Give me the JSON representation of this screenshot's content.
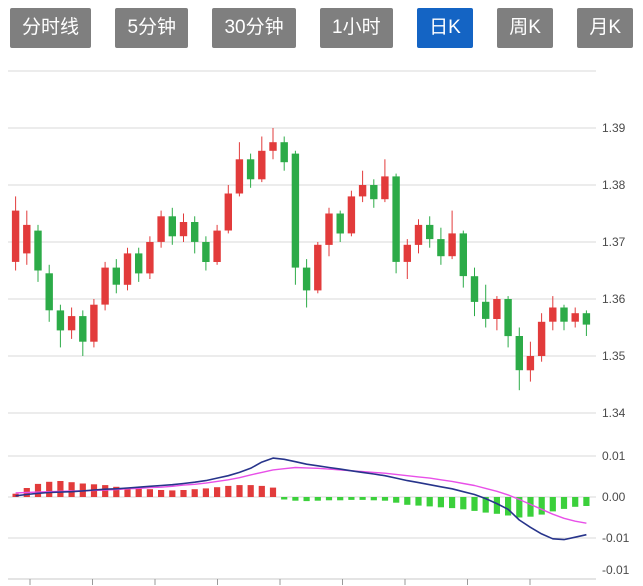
{
  "tabs": [
    {
      "label": "分时线",
      "active": false
    },
    {
      "label": "5分钟",
      "active": false
    },
    {
      "label": "30分钟",
      "active": false
    },
    {
      "label": "1小时",
      "active": false
    },
    {
      "label": "日K",
      "active": true
    },
    {
      "label": "周K",
      "active": false
    },
    {
      "label": "月K",
      "active": false
    }
  ],
  "colors": {
    "tab_bg": "#7f7f7f",
    "tab_active_bg": "#1464c4",
    "tab_text": "#ffffff",
    "candle_up": "#e23b3b",
    "candle_down": "#2cab48",
    "hist_up": "#e23b3b",
    "hist_down": "#3bd03b",
    "diff_line": "#27348b",
    "dea_line": "#e850e8",
    "grid": "#d9d9d9",
    "axis_text": "#4a4a4a"
  },
  "chart_data": {
    "type": "candlestick",
    "title": "",
    "legend": [],
    "grid": true,
    "price_axis": {
      "ticks": [
        "1.39",
        "1.38",
        "1.37",
        "1.36",
        "1.35",
        "1.34"
      ],
      "range": [
        1.34,
        1.4
      ]
    },
    "candles": {
      "open": [
        1.3665,
        1.368,
        1.372,
        1.3645,
        1.358,
        1.3545,
        1.357,
        1.3525,
        1.359,
        1.3655,
        1.3625,
        1.368,
        1.3645,
        1.37,
        1.3745,
        1.371,
        1.3735,
        1.37,
        1.3665,
        1.372,
        1.3785,
        1.3845,
        1.381,
        1.386,
        1.3875,
        1.3855,
        1.3655,
        1.3615,
        1.3695,
        1.375,
        1.3715,
        1.378,
        1.38,
        1.3775,
        1.3815,
        1.3665,
        1.3695,
        1.373,
        1.3705,
        1.3675,
        1.3715,
        1.364,
        1.3595,
        1.3565,
        1.36,
        1.3535,
        1.3475,
        1.35,
        1.356,
        1.3585,
        1.356,
        1.3575
      ],
      "close": [
        1.3755,
        1.373,
        1.365,
        1.358,
        1.3545,
        1.357,
        1.3525,
        1.359,
        1.3655,
        1.3625,
        1.368,
        1.3645,
        1.37,
        1.3745,
        1.371,
        1.3735,
        1.37,
        1.3665,
        1.372,
        1.3785,
        1.3845,
        1.381,
        1.386,
        1.3875,
        1.384,
        1.3655,
        1.3615,
        1.3695,
        1.375,
        1.3715,
        1.378,
        1.38,
        1.3775,
        1.3815,
        1.3665,
        1.3695,
        1.373,
        1.3705,
        1.3675,
        1.3715,
        1.364,
        1.3595,
        1.3565,
        1.36,
        1.3535,
        1.3475,
        1.35,
        1.356,
        1.3585,
        1.356,
        1.3575,
        1.3555
      ],
      "high": [
        1.378,
        1.3755,
        1.373,
        1.366,
        1.359,
        1.3585,
        1.358,
        1.36,
        1.3665,
        1.367,
        1.369,
        1.369,
        1.371,
        1.3755,
        1.376,
        1.375,
        1.3745,
        1.371,
        1.373,
        1.38,
        1.3875,
        1.3855,
        1.3885,
        1.39,
        1.3885,
        1.386,
        1.367,
        1.37,
        1.376,
        1.3755,
        1.379,
        1.3825,
        1.381,
        1.3845,
        1.382,
        1.3705,
        1.374,
        1.3745,
        1.3725,
        1.3755,
        1.372,
        1.3655,
        1.3625,
        1.3605,
        1.3605,
        1.355,
        1.3525,
        1.3575,
        1.3605,
        1.359,
        1.3585,
        1.358
      ],
      "low": [
        1.365,
        1.366,
        1.363,
        1.356,
        1.3515,
        1.353,
        1.35,
        1.3515,
        1.358,
        1.361,
        1.3615,
        1.363,
        1.3635,
        1.369,
        1.3695,
        1.37,
        1.368,
        1.365,
        1.366,
        1.3715,
        1.378,
        1.3795,
        1.3805,
        1.3845,
        1.3825,
        1.3625,
        1.3585,
        1.361,
        1.3675,
        1.37,
        1.371,
        1.377,
        1.376,
        1.377,
        1.3645,
        1.3635,
        1.368,
        1.369,
        1.366,
        1.367,
        1.362,
        1.357,
        1.355,
        1.3545,
        1.3515,
        1.344,
        1.3455,
        1.349,
        1.3545,
        1.3545,
        1.355,
        1.3535
      ]
    },
    "macd": {
      "axis_ticks": [
        "0.01",
        "0.00",
        "-0.01",
        "-0.01"
      ],
      "diff": [
        0.0003,
        0.0006,
        0.0009,
        0.0011,
        0.0012,
        0.0013,
        0.0015,
        0.0017,
        0.0019,
        0.002,
        0.0022,
        0.0024,
        0.0026,
        0.0028,
        0.003,
        0.0033,
        0.0036,
        0.004,
        0.0046,
        0.0052,
        0.006,
        0.007,
        0.0085,
        0.0095,
        0.0092,
        0.0086,
        0.008,
        0.0076,
        0.0072,
        0.0068,
        0.0064,
        0.006,
        0.0056,
        0.0052,
        0.0046,
        0.004,
        0.0035,
        0.003,
        0.0025,
        0.002,
        0.0013,
        0.0006,
        -0.0004,
        -0.0016,
        -0.003,
        -0.0056,
        -0.0074,
        -0.009,
        -0.0102,
        -0.0104,
        -0.0098,
        -0.0092
      ],
      "dea": [
        0.001,
        0.0011,
        0.0012,
        0.0013,
        0.0014,
        0.0015,
        0.0015,
        0.0016,
        0.0017,
        0.0018,
        0.002,
        0.0021,
        0.0023,
        0.0024,
        0.0026,
        0.0029,
        0.0031,
        0.0034,
        0.0038,
        0.0042,
        0.0047,
        0.0054,
        0.006,
        0.0066,
        0.0069,
        0.0072,
        0.0071,
        0.007,
        0.0068,
        0.0066,
        0.0064,
        0.0062,
        0.006,
        0.0058,
        0.0055,
        0.0052,
        0.0049,
        0.0046,
        0.0042,
        0.0038,
        0.0033,
        0.0028,
        0.0021,
        0.0014,
        0.0005,
        -0.0006,
        -0.0018,
        -0.003,
        -0.0042,
        -0.0052,
        -0.0059,
        -0.0064
      ],
      "hist": [
        0.0008,
        0.0022,
        0.0032,
        0.0037,
        0.0039,
        0.0036,
        0.0033,
        0.0031,
        0.0029,
        0.0025,
        0.0023,
        0.0021,
        0.0019,
        0.0017,
        0.0016,
        0.0017,
        0.0019,
        0.0021,
        0.0024,
        0.0027,
        0.0029,
        0.0029,
        0.0027,
        0.0023,
        -0.0006,
        -0.0009,
        -0.001,
        -0.0009,
        -0.0008,
        -0.0008,
        -0.0007,
        -0.0007,
        -0.0008,
        -0.0009,
        -0.0014,
        -0.0019,
        -0.0021,
        -0.0023,
        -0.0025,
        -0.0027,
        -0.003,
        -0.0034,
        -0.0038,
        -0.0041,
        -0.0045,
        -0.005,
        -0.0048,
        -0.0043,
        -0.0035,
        -0.0029,
        -0.0024,
        -0.0022
      ]
    }
  }
}
